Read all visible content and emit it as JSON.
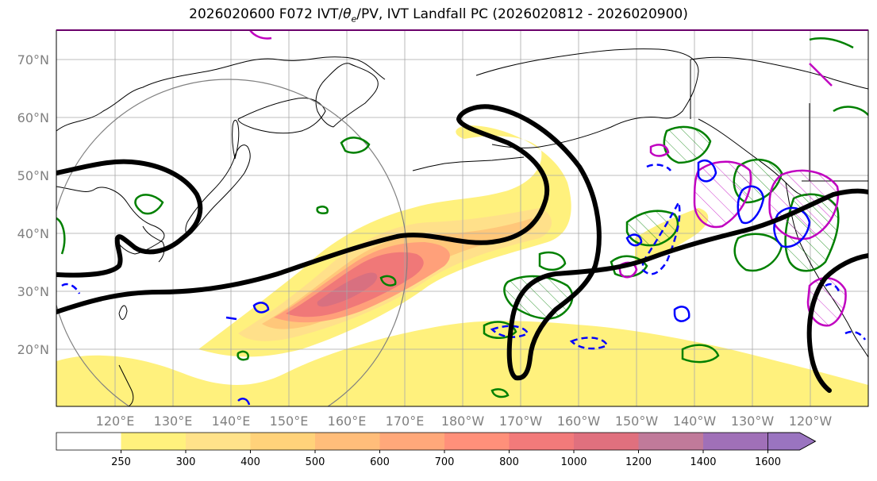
{
  "title": {
    "prefix": "2026020600 F072 IVT/",
    "theta_symbol": "θ",
    "theta_subscript": "e",
    "suffix": "/PV, IVT Landfall PC (2026020812 - 2026020900)"
  },
  "axes": {
    "lat_labels": [
      "70°N",
      "60°N",
      "50°N",
      "40°N",
      "30°N",
      "20°N"
    ],
    "lon_labels": [
      "120°E",
      "130°E",
      "140°E",
      "150°E",
      "160°E",
      "170°E",
      "180°W",
      "170°W",
      "160°W",
      "150°W",
      "140°W",
      "130°W",
      "120°W"
    ],
    "grid": true
  },
  "colorbar": {
    "tick_labels": [
      "250",
      "300",
      "400",
      "500",
      "600",
      "700",
      "800",
      "1000",
      "1200",
      "1400",
      "1600"
    ],
    "colors": [
      "#ffffff",
      "#fff17d",
      "#ffe28a",
      "#ffd27a",
      "#ffbd7a",
      "#ffa87a",
      "#ff907a",
      "#f27a7a",
      "#e0707e",
      "#c07a9a",
      "#a070b8",
      "#9a74c0"
    ],
    "extend": "max"
  },
  "contours": {
    "pv_color": "#000000",
    "theta_e_color": "#008000",
    "ivt_pc_color": "#0000ff",
    "magenta_color": "#c000c0",
    "circle_color": "#808080"
  }
}
